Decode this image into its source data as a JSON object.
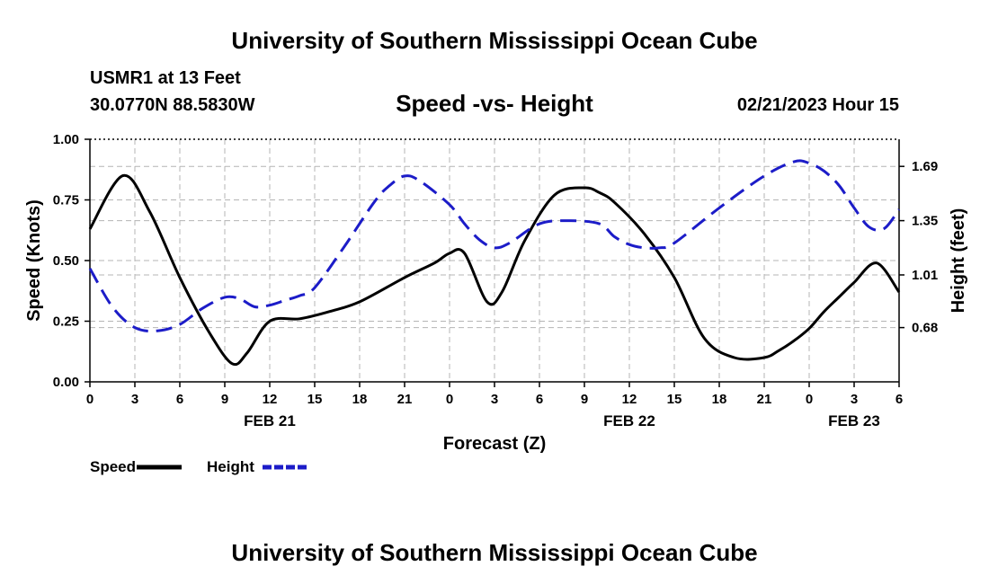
{
  "page": {
    "title_top": "University of Southern Mississippi Ocean Cube",
    "title_bottom": "University of Southern Mississippi Ocean Cube",
    "station": "USMR1 at 13 Feet",
    "coords": "30.0770N  88.5830W",
    "chart_title": "Speed -vs- Height",
    "date_hour": "02/21/2023 Hour 15"
  },
  "chart_data": {
    "type": "line",
    "title": "Speed -vs- Height",
    "xlabel": "Forecast (Z)",
    "ylabel": "Speed (Knots)",
    "y2label": "Height (feet)",
    "x_range_hours": [
      0,
      54
    ],
    "x_ticks": [
      0,
      3,
      6,
      9,
      12,
      15,
      18,
      21,
      24,
      27,
      30,
      33,
      36,
      39,
      42,
      45,
      48,
      51,
      54
    ],
    "x_tick_labels": [
      "0",
      "3",
      "6",
      "9",
      "12",
      "15",
      "18",
      "21",
      "0",
      "3",
      "6",
      "9",
      "12",
      "15",
      "18",
      "21",
      "0",
      "3",
      "6"
    ],
    "date_labels": [
      {
        "hour": 12,
        "label": "FEB 21"
      },
      {
        "hour": 36,
        "label": "FEB 22"
      },
      {
        "hour": 51,
        "label": "FEB 23"
      }
    ],
    "ylim": [
      0,
      1
    ],
    "y_ticks": [
      0,
      0.25,
      0.5,
      0.75,
      1.0
    ],
    "y_tick_labels": [
      "0.00",
      "0.25",
      "0.50",
      "0.75",
      "1.00"
    ],
    "y2lim": [
      0.34,
      1.86
    ],
    "y2_ticks": [
      0.68,
      1.01,
      1.35,
      1.69
    ],
    "y2_tick_labels": [
      "0.68",
      "1.01",
      "1.35",
      "1.69"
    ],
    "grid": true,
    "legend": [
      {
        "name": "Speed",
        "color": "#000000",
        "style": "solid"
      },
      {
        "name": "Height",
        "color": "#1c1cc8",
        "style": "dashed"
      }
    ],
    "series": [
      {
        "name": "Speed",
        "axis": "left",
        "color": "#000000",
        "style": "solid",
        "x": [
          0,
          2.2,
          4,
          6,
          8,
          9.5,
          10.5,
          12,
          14,
          16,
          18,
          21,
          23,
          24,
          25,
          26.5,
          27.5,
          29,
          31,
          33,
          34,
          35,
          37,
          39,
          41,
          43,
          45,
          46,
          47,
          48,
          49,
          50,
          51,
          52.5,
          54
        ],
        "values": [
          0.63,
          0.85,
          0.7,
          0.43,
          0.2,
          0.075,
          0.12,
          0.25,
          0.26,
          0.29,
          0.33,
          0.43,
          0.49,
          0.53,
          0.53,
          0.33,
          0.37,
          0.58,
          0.77,
          0.8,
          0.78,
          0.74,
          0.61,
          0.43,
          0.18,
          0.1,
          0.1,
          0.13,
          0.17,
          0.22,
          0.29,
          0.35,
          0.41,
          0.49,
          0.37
        ]
      },
      {
        "name": "Height",
        "axis": "right",
        "color": "#1c1cc8",
        "style": "dashed",
        "x": [
          0,
          1.5,
          3,
          4.5,
          6,
          7.5,
          9,
          10,
          11,
          12,
          13,
          14,
          15,
          17,
          19,
          20,
          21,
          22,
          24,
          25,
          26,
          27,
          28,
          30,
          32,
          34,
          35,
          36,
          37,
          38,
          39,
          42,
          45,
          47,
          48,
          49,
          50,
          51,
          52,
          53,
          54
        ],
        "values": [
          1.05,
          0.81,
          0.68,
          0.66,
          0.7,
          0.8,
          0.87,
          0.86,
          0.81,
          0.82,
          0.85,
          0.88,
          0.93,
          1.19,
          1.47,
          1.57,
          1.63,
          1.6,
          1.45,
          1.33,
          1.23,
          1.18,
          1.21,
          1.33,
          1.35,
          1.33,
          1.25,
          1.2,
          1.18,
          1.18,
          1.21,
          1.43,
          1.63,
          1.72,
          1.71,
          1.66,
          1.57,
          1.43,
          1.31,
          1.3,
          1.42
        ]
      }
    ]
  }
}
